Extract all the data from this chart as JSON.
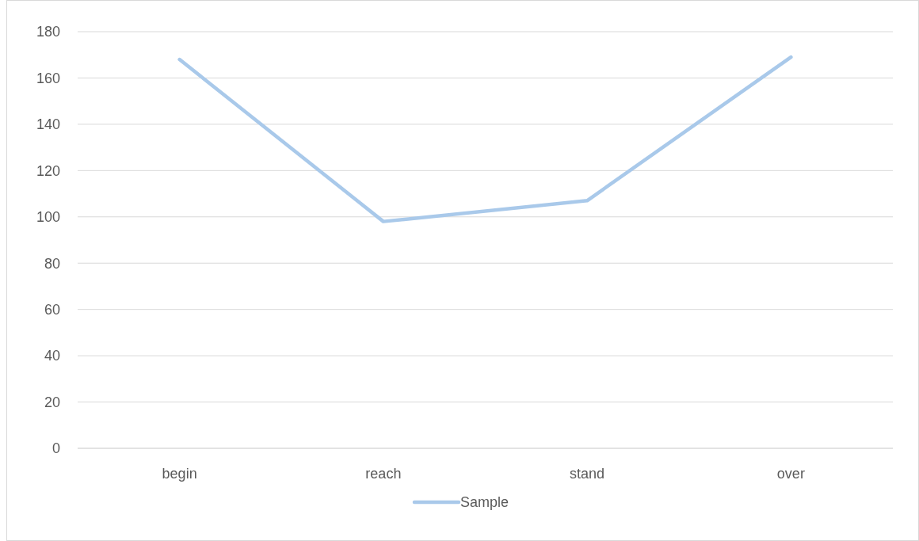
{
  "chart_data": {
    "type": "line",
    "categories": [
      "begin",
      "reach",
      "stand",
      "over"
    ],
    "series": [
      {
        "name": "Sample",
        "color": "#a9c9ea",
        "values": [
          168,
          98,
          107,
          169
        ]
      }
    ],
    "ylim": [
      0,
      180
    ],
    "yticks": [
      0,
      20,
      40,
      60,
      80,
      100,
      120,
      140,
      160,
      180
    ],
    "grid": "y",
    "legend": "bottom",
    "marker": "none",
    "line_style": "solid"
  }
}
